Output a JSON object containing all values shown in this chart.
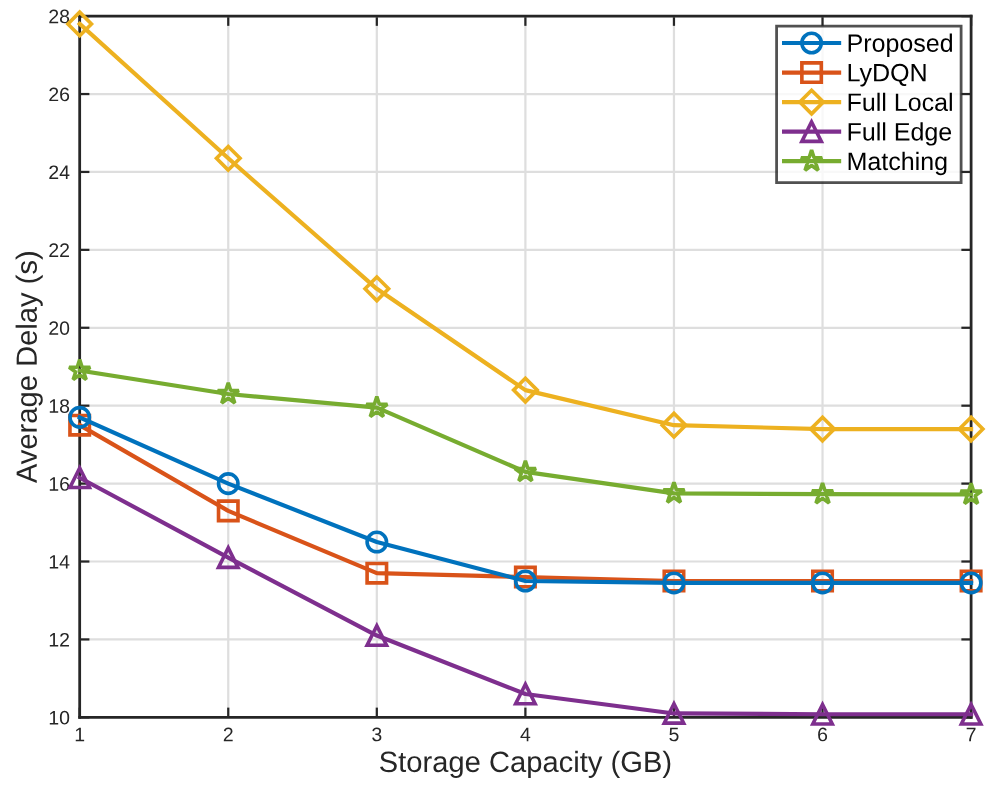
{
  "chart_data": {
    "type": "line",
    "xlabel": "Storage Capacity (GB)",
    "ylabel": "Average Delay (s)",
    "x": [
      1,
      2,
      3,
      4,
      5,
      6,
      7
    ],
    "series": [
      {
        "name": "Proposed",
        "color": "#0072bd",
        "marker": "circle",
        "values": [
          17.7,
          16.0,
          14.5,
          13.5,
          13.45,
          13.45,
          13.45
        ]
      },
      {
        "name": "LyDQN",
        "color": "#d95319",
        "marker": "square",
        "values": [
          17.5,
          15.3,
          13.7,
          13.6,
          13.5,
          13.5,
          13.5
        ]
      },
      {
        "name": "Full Local",
        "color": "#edb120",
        "marker": "diamond",
        "values": [
          27.8,
          24.35,
          21.0,
          18.4,
          17.5,
          17.4,
          17.4
        ]
      },
      {
        "name": "Full Edge",
        "color": "#7e2f8e",
        "marker": "triangle",
        "values": [
          16.15,
          14.1,
          12.1,
          10.6,
          10.1,
          10.08,
          10.08
        ]
      },
      {
        "name": "Matching",
        "color": "#77ac30",
        "marker": "star",
        "values": [
          18.9,
          18.3,
          17.95,
          16.3,
          15.75,
          15.73,
          15.72
        ]
      }
    ],
    "xlim": [
      1,
      7
    ],
    "xticks": [
      1,
      2,
      3,
      4,
      5,
      6,
      7
    ],
    "ylim": [
      10,
      28
    ],
    "yticks": [
      10,
      12,
      14,
      16,
      18,
      20,
      22,
      24,
      26,
      28
    ],
    "grid": true,
    "legend": "top right",
    "line_style": "solid"
  }
}
